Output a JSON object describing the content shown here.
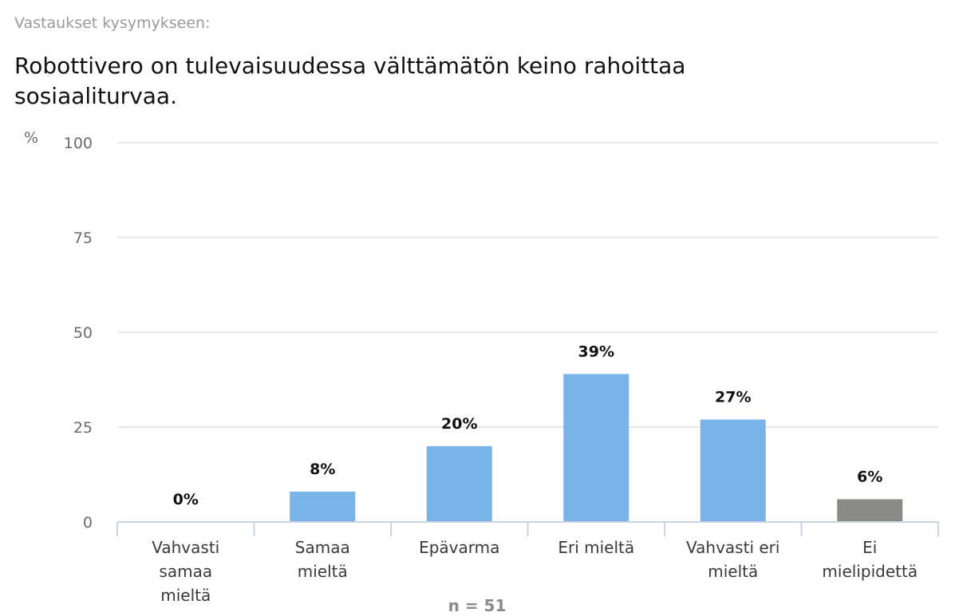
{
  "header": {
    "subtitle": "Vastaukset kysymykseen:",
    "title": "Robottivero on tulevaisuudessa välttämätön keino rahoittaa sosiaaliturvaa."
  },
  "chart_data": {
    "type": "bar",
    "ylabel": "%",
    "ylim": [
      0,
      100
    ],
    "yticks": [
      0,
      25,
      50,
      75,
      100
    ],
    "grid": true,
    "categories": [
      [
        "Vahvasti",
        "samaa",
        "mieltä"
      ],
      [
        "Samaa",
        "mieltä"
      ],
      [
        "Epävarma"
      ],
      [
        "Eri mieltä"
      ],
      [
        "Vahvasti eri",
        "mieltä"
      ],
      [
        "Ei",
        "mielipidettä"
      ]
    ],
    "values": [
      0,
      8,
      20,
      39,
      27,
      6
    ],
    "data_labels": [
      "0%",
      "8%",
      "20%",
      "39%",
      "27%",
      "6%"
    ],
    "colors": [
      "#7ab3ea",
      "#7ab3ea",
      "#7ab3ea",
      "#7ab3ea",
      "#7ab3ea",
      "#8a8a87"
    ],
    "gridline_color": "#dde3ea",
    "footnote": "n = 51"
  }
}
